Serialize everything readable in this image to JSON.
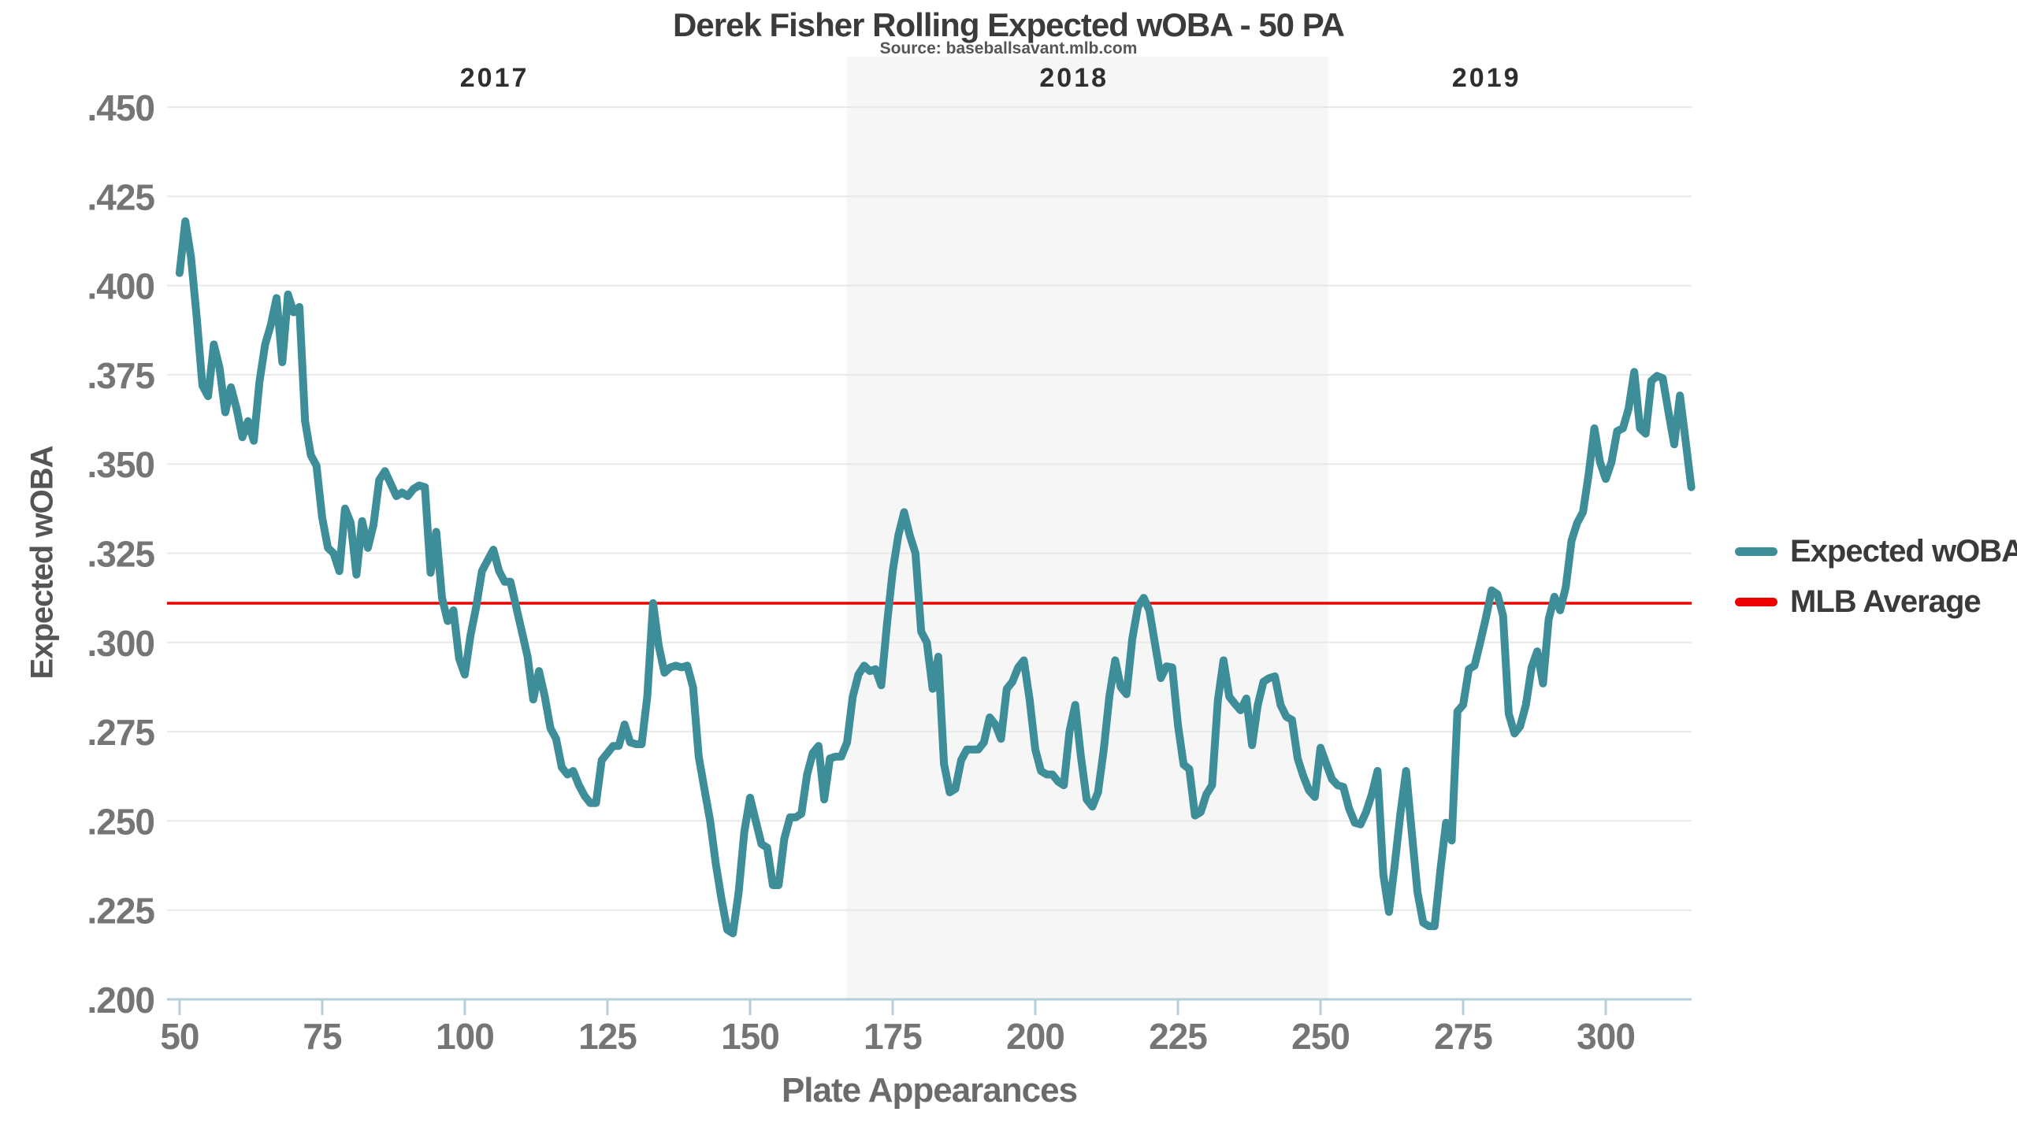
{
  "title": "Derek Fisher Rolling Expected wOBA - 50 PA",
  "source": "Source: baseballsavant.mlb.com",
  "legend": [
    {
      "label": "Expected wOBA",
      "color": "#3d8e99"
    },
    {
      "label": "MLB Average",
      "color": "#ec0000"
    }
  ],
  "axes": {
    "x_label": "Plate Appearances",
    "y_label": "Expected wOBA"
  },
  "colors": {
    "line": "#3d8e99",
    "mlb_average": "#ec0000",
    "band": "#f6f6f6",
    "gridline": "#e8e8e8",
    "axis": "#b5cedd",
    "tick_text": "#757575",
    "year_text": "#2e2e2e"
  },
  "chart_data": {
    "type": "line",
    "title": "Derek Fisher Rolling Expected wOBA - 50 PA",
    "xlabel": "Plate Appearances",
    "ylabel": "Expected wOBA",
    "xlim": [
      47.8,
      315.05
    ],
    "ylim": [
      0.2,
      0.45
    ],
    "grid": true,
    "legend_position": "right",
    "x_ticks": [
      50,
      75,
      100,
      125,
      150,
      175,
      200,
      225,
      250,
      275,
      300
    ],
    "y_ticks": [
      0.2,
      0.225,
      0.25,
      0.275,
      0.3,
      0.325,
      0.35,
      0.375,
      0.4,
      0.425,
      0.45
    ],
    "y_tick_labels": [
      ".200",
      ".225",
      ".250",
      ".275",
      ".300",
      ".325",
      ".350",
      ".375",
      ".400",
      ".425",
      ".450"
    ],
    "mlb_average_value": 0.311,
    "shaded_region": {
      "label": "2018",
      "x_start": 167,
      "x_end": 251.3
    },
    "year_labels": [
      {
        "label": "2017",
        "pa": 105.2
      },
      {
        "label": "2018",
        "pa": 206.8
      },
      {
        "label": "2019",
        "pa": 279.1
      }
    ],
    "series": [
      {
        "name": "Expected wOBA",
        "color": "#3d8e99",
        "x_start": 50,
        "x_step": 1,
        "values": [
          0.4035,
          0.418,
          0.408,
          0.391,
          0.372,
          0.369,
          0.3835,
          0.377,
          0.3645,
          0.3715,
          0.3655,
          0.3575,
          0.362,
          0.3565,
          0.373,
          0.3835,
          0.389,
          0.3965,
          0.3785,
          0.3975,
          0.3925,
          0.394,
          0.362,
          0.3525,
          0.3495,
          0.335,
          0.3265,
          0.325,
          0.32,
          0.3375,
          0.3335,
          0.319,
          0.334,
          0.3265,
          0.333,
          0.3455,
          0.348,
          0.3445,
          0.341,
          0.342,
          0.341,
          0.343,
          0.344,
          0.3435,
          0.3195,
          0.331,
          0.3125,
          0.306,
          0.309,
          0.2955,
          0.291,
          0.302,
          0.31,
          0.32,
          0.323,
          0.326,
          0.32,
          0.317,
          0.317,
          0.31,
          0.303,
          0.296,
          0.284,
          0.292,
          0.285,
          0.276,
          0.273,
          0.265,
          0.263,
          0.264,
          0.26,
          0.257,
          0.255,
          0.255,
          0.267,
          0.269,
          0.271,
          0.271,
          0.277,
          0.272,
          0.2715,
          0.2715,
          0.285,
          0.311,
          0.299,
          0.2915,
          0.293,
          0.2935,
          0.293,
          0.2935,
          0.2875,
          0.268,
          0.259,
          0.25,
          0.238,
          0.228,
          0.2195,
          0.2185,
          0.23,
          0.247,
          0.2565,
          0.25,
          0.2435,
          0.2425,
          0.232,
          0.232,
          0.245,
          0.251,
          0.251,
          0.252,
          0.263,
          0.269,
          0.271,
          0.256,
          0.2675,
          0.268,
          0.268,
          0.272,
          0.2848,
          0.291,
          0.2935,
          0.292,
          0.2925,
          0.288,
          0.305,
          0.32,
          0.33,
          0.3365,
          0.33,
          0.325,
          0.303,
          0.3,
          0.287,
          0.296,
          0.266,
          0.258,
          0.259,
          0.267,
          0.27,
          0.27,
          0.27,
          0.272,
          0.279,
          0.277,
          0.273,
          0.287,
          0.289,
          0.293,
          0.295,
          0.284,
          0.27,
          0.264,
          0.263,
          0.263,
          0.261,
          0.26,
          0.275,
          0.2825,
          0.268,
          0.256,
          0.254,
          0.258,
          0.27,
          0.285,
          0.295,
          0.2875,
          0.2855,
          0.301,
          0.31,
          0.3125,
          0.309,
          0.2995,
          0.29,
          0.2933,
          0.293,
          0.277,
          0.2658,
          0.2645,
          0.2515,
          0.2525,
          0.2575,
          0.26,
          0.2837,
          0.295,
          0.2848,
          0.2828,
          0.281,
          0.2843,
          0.2712,
          0.2825,
          0.289,
          0.29,
          0.2905,
          0.2825,
          0.2792,
          0.2783,
          0.2675,
          0.2625,
          0.2585,
          0.2567,
          0.2705,
          0.266,
          0.2617,
          0.26,
          0.2595,
          0.2535,
          0.2495,
          0.249,
          0.2525,
          0.2575,
          0.264,
          0.235,
          0.2245,
          0.2375,
          0.252,
          0.264,
          0.2467,
          0.23,
          0.2215,
          0.2205,
          0.2205,
          0.236,
          0.2495,
          0.2445,
          0.2807,
          0.2825,
          0.2925,
          0.2935,
          0.3,
          0.307,
          0.3146,
          0.3135,
          0.3075,
          0.28,
          0.2745,
          0.2765,
          0.2825,
          0.293,
          0.2975,
          0.2885,
          0.3065,
          0.3128,
          0.309,
          0.3155,
          0.3285,
          0.3335,
          0.3365,
          0.347,
          0.36,
          0.3505,
          0.3458,
          0.3505,
          0.3592,
          0.36,
          0.3655,
          0.3758,
          0.36,
          0.3585,
          0.3733,
          0.3747,
          0.374,
          0.3645,
          0.3555,
          0.3692,
          0.3565,
          0.3435
        ]
      },
      {
        "name": "MLB Average",
        "color": "#ec0000",
        "value": 0.311
      }
    ]
  }
}
